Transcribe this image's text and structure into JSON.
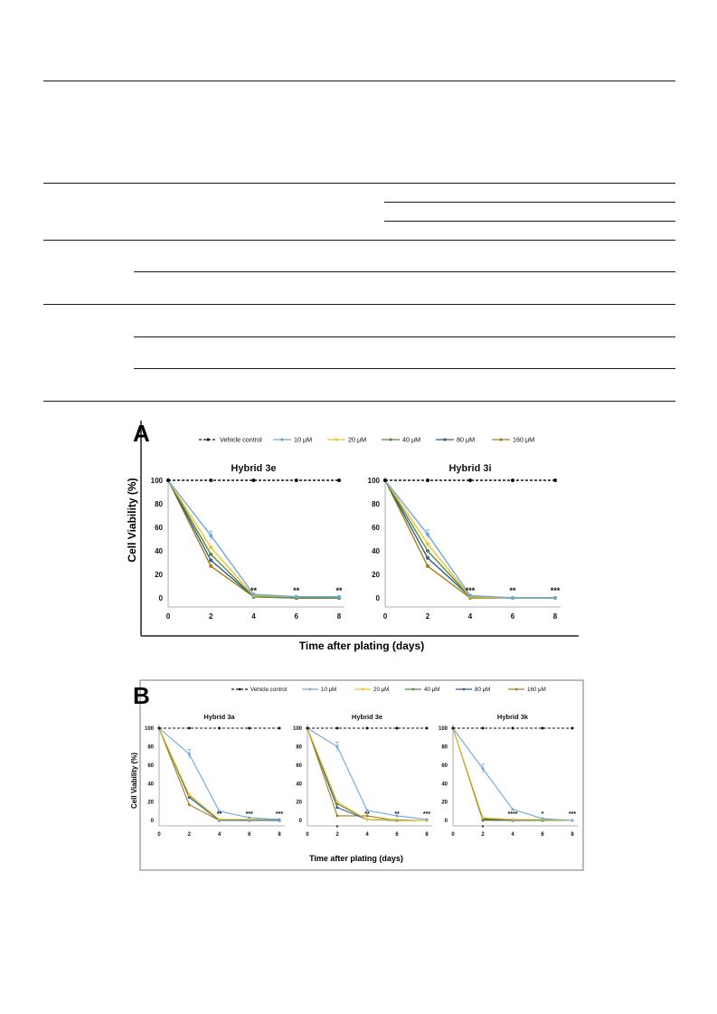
{
  "legend": {
    "entries": [
      {
        "label": "Vehicle control",
        "color": "#111111",
        "dashed": true
      },
      {
        "label": "10 μM",
        "color": "#6fa8dc"
      },
      {
        "label": "20 μM",
        "color": "#f2c12e"
      },
      {
        "label": "40 μM",
        "color": "#5b8a3a"
      },
      {
        "label": "80 μM",
        "color": "#2f5f8a"
      },
      {
        "label": "160 μM",
        "color": "#a67c1a"
      }
    ]
  },
  "panels": {
    "A": {
      "letter": "A",
      "ylabel": "Cell Viability (%)",
      "xlabel": "Time after plating (days)"
    },
    "B": {
      "letter": "B",
      "ylabel": "Cell Viability (%)",
      "xlabel": "Time after plating (days)"
    }
  },
  "chart_data": [
    {
      "type": "line",
      "panel": "A",
      "title": "Hybrid 3e",
      "x": [
        0,
        2,
        4,
        6,
        8
      ],
      "xlim": [
        0,
        8
      ],
      "ylim": [
        0,
        100
      ],
      "xticks": [
        0,
        2,
        4,
        6,
        8
      ],
      "yticks": [
        0,
        20,
        40,
        60,
        80,
        100
      ],
      "series": [
        {
          "name": "Vehicle control",
          "values": [
            100,
            100,
            100,
            100,
            100
          ]
        },
        {
          "name": "10 μM",
          "values": [
            100,
            53,
            3,
            1,
            1
          ]
        },
        {
          "name": "20 μM",
          "values": [
            100,
            43,
            2,
            1,
            1
          ]
        },
        {
          "name": "40 μM",
          "values": [
            100,
            37,
            1,
            0,
            0
          ]
        },
        {
          "name": "80 μM",
          "values": [
            100,
            32,
            1,
            0,
            0
          ]
        },
        {
          "name": "160 μM",
          "values": [
            100,
            27,
            1,
            0,
            0
          ]
        }
      ],
      "annotations": [
        {
          "x": 4,
          "text": "**"
        },
        {
          "x": 6,
          "text": "**"
        },
        {
          "x": 8,
          "text": "**"
        }
      ]
    },
    {
      "type": "line",
      "panel": "A",
      "title": "Hybrid 3i",
      "x": [
        0,
        2,
        4,
        6,
        8
      ],
      "xlim": [
        0,
        8
      ],
      "ylim": [
        0,
        100
      ],
      "xticks": [
        0,
        2,
        4,
        6,
        8
      ],
      "yticks": [
        0,
        20,
        40,
        60,
        80,
        100
      ],
      "series": [
        {
          "name": "Vehicle control",
          "values": [
            100,
            100,
            100,
            100,
            100
          ]
        },
        {
          "name": "10 μM",
          "values": [
            100,
            54,
            2,
            0,
            0
          ]
        },
        {
          "name": "20 μM",
          "values": [
            100,
            46,
            1,
            0,
            0
          ]
        },
        {
          "name": "40 μM",
          "values": [
            100,
            40,
            1,
            0,
            0
          ]
        },
        {
          "name": "80 μM",
          "values": [
            100,
            34,
            1,
            0,
            0
          ]
        },
        {
          "name": "160 μM",
          "values": [
            100,
            27,
            0,
            0,
            0
          ]
        }
      ],
      "annotations": [
        {
          "x": 4,
          "text": "***"
        },
        {
          "x": 6,
          "text": "**"
        },
        {
          "x": 8,
          "text": "***"
        }
      ]
    },
    {
      "type": "line",
      "panel": "B",
      "title": "Hybrid 3a",
      "x": [
        0,
        2,
        4,
        6,
        8
      ],
      "xlim": [
        0,
        8
      ],
      "ylim": [
        0,
        100
      ],
      "xticks": [
        0,
        2,
        4,
        6,
        8
      ],
      "yticks": [
        0,
        20,
        40,
        60,
        80,
        100
      ],
      "series": [
        {
          "name": "Vehicle control",
          "values": [
            100,
            100,
            100,
            100,
            100
          ]
        },
        {
          "name": "10 μM",
          "values": [
            100,
            72,
            10,
            3,
            1
          ]
        },
        {
          "name": "20 μM",
          "values": [
            100,
            28,
            1,
            1,
            1
          ]
        },
        {
          "name": "40 μM",
          "values": [
            100,
            27,
            1,
            1,
            1
          ]
        },
        {
          "name": "80 μM",
          "values": [
            100,
            25,
            0,
            0,
            0
          ]
        },
        {
          "name": "160 μM",
          "values": [
            100,
            17,
            0,
            0,
            0
          ]
        }
      ],
      "annotations": [
        {
          "x": 4,
          "text": "**"
        },
        {
          "x": 6,
          "text": "***"
        },
        {
          "x": 8,
          "text": "***"
        }
      ]
    },
    {
      "type": "line",
      "panel": "B",
      "title": "Hybrid 3e",
      "x": [
        0,
        2,
        4,
        6,
        8
      ],
      "xlim": [
        0,
        8
      ],
      "ylim": [
        0,
        100
      ],
      "xticks": [
        0,
        2,
        4,
        6,
        8
      ],
      "yticks": [
        0,
        20,
        40,
        60,
        80,
        100
      ],
      "series": [
        {
          "name": "Vehicle control",
          "values": [
            100,
            100,
            100,
            100,
            100
          ]
        },
        {
          "name": "10 μM",
          "values": [
            100,
            80,
            11,
            5,
            1
          ]
        },
        {
          "name": "20 μM",
          "values": [
            100,
            20,
            1,
            1,
            0
          ]
        },
        {
          "name": "40 μM",
          "values": [
            100,
            18,
            1,
            0,
            0
          ]
        },
        {
          "name": "80 μM",
          "values": [
            100,
            14,
            1,
            0,
            0
          ]
        },
        {
          "name": "160 μM",
          "values": [
            100,
            5,
            5,
            0,
            0
          ]
        }
      ],
      "annotations": [
        {
          "x": 2,
          "text": "*",
          "below": true
        },
        {
          "x": 4,
          "text": "**"
        },
        {
          "x": 6,
          "text": "**"
        },
        {
          "x": 8,
          "text": "***"
        }
      ]
    },
    {
      "type": "line",
      "panel": "B",
      "title": "Hybrid 3k",
      "x": [
        0,
        2,
        4,
        6,
        8
      ],
      "xlim": [
        0,
        8
      ],
      "ylim": [
        0,
        100
      ],
      "xticks": [
        0,
        2,
        4,
        6,
        8
      ],
      "yticks": [
        0,
        20,
        40,
        60,
        80,
        100
      ],
      "series": [
        {
          "name": "Vehicle control",
          "values": [
            100,
            100,
            100,
            100,
            100
          ]
        },
        {
          "name": "10 μM",
          "values": [
            100,
            56,
            12,
            2,
            0
          ]
        },
        {
          "name": "20 μM",
          "values": [
            100,
            3,
            1,
            1,
            0
          ]
        },
        {
          "name": "40 μM",
          "values": [
            100,
            2,
            1,
            0,
            0
          ]
        },
        {
          "name": "80 μM",
          "values": [
            100,
            1,
            0,
            0,
            0
          ]
        },
        {
          "name": "160 μM",
          "values": [
            100,
            0,
            0,
            0,
            0
          ]
        }
      ],
      "annotations": [
        {
          "x": 2,
          "text": "*",
          "below": true
        },
        {
          "x": 4,
          "text": "****"
        },
        {
          "x": 6,
          "text": "*"
        },
        {
          "x": 8,
          "text": "***"
        }
      ]
    }
  ]
}
